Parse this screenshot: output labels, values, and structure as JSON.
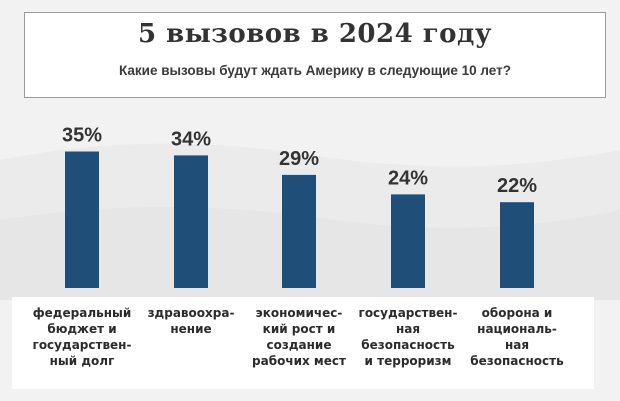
{
  "header": {
    "title": "5 вызовов в 2024 году",
    "subtitle": "Какие вызовы будут ждать Америку в следующие 10 лет?"
  },
  "colors": {
    "bar": "#1f4e79",
    "background": "#f2f2f2",
    "text": "#333333"
  },
  "chart_data": {
    "type": "bar",
    "title": "5 вызовов в 2024 году",
    "subtitle": "Какие вызовы будут ждать Америку в следующие 10 лет?",
    "categories": [
      "федеральный\nбюджет и\nгосударствен-\nный долг",
      "здравоохра-\nнение",
      "экономичес-\nкий рост и\nсоздание\nрабочих мест",
      "государствен-\nная\nбезопасность\nи терроризм",
      "оборона и\nнациональ-\nная\nбезопасность"
    ],
    "values": [
      35,
      34,
      29,
      24,
      22
    ],
    "value_labels": [
      "35%",
      "34%",
      "29%",
      "24%",
      "22%"
    ],
    "ylim": [
      0,
      40
    ],
    "grid": false,
    "legend": "none"
  }
}
